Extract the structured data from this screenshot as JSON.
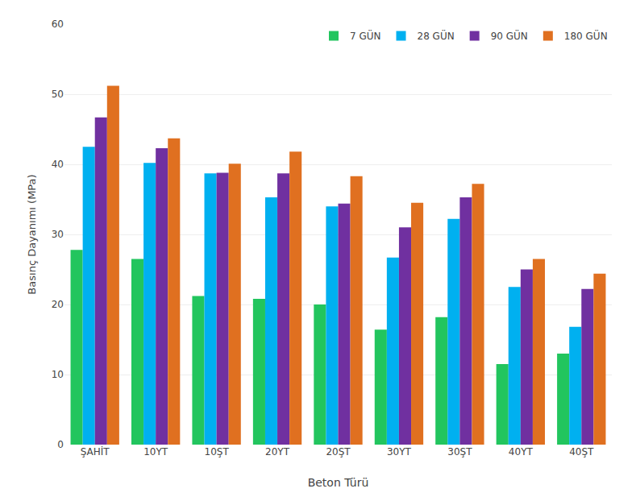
{
  "chart_data": {
    "type": "bar",
    "categories": [
      "ŞAHİT",
      "10YT",
      "10ŞT",
      "20YT",
      "20ŞT",
      "30YT",
      "30ŞT",
      "40YT",
      "40ŞT"
    ],
    "series": [
      {
        "name": "7 GÜN",
        "color": "#22C55E",
        "values": [
          27.8,
          26.5,
          21.2,
          20.8,
          20.0,
          16.4,
          18.2,
          11.5,
          13.0
        ]
      },
      {
        "name": "28 GÜN",
        "color": "#00B0F0",
        "values": [
          42.5,
          40.2,
          38.7,
          35.3,
          34.0,
          26.7,
          32.2,
          22.5,
          16.8
        ]
      },
      {
        "name": "90 GÜN",
        "color": "#7030A0",
        "values": [
          46.7,
          42.3,
          38.8,
          38.7,
          34.4,
          31.0,
          35.3,
          25.0,
          22.2
        ]
      },
      {
        "name": "180 GÜN",
        "color": "#E07020",
        "values": [
          51.2,
          43.7,
          40.1,
          41.8,
          38.3,
          34.5,
          37.2,
          26.5,
          24.4
        ]
      }
    ],
    "xlabel": "Beton Türü",
    "ylabel": "Basınç Dayanımı (MPa)",
    "ylim": [
      0,
      60
    ],
    "yticks": [
      0,
      10,
      20,
      30,
      40,
      50,
      60
    ],
    "grid": true,
    "legend": "upper right"
  }
}
